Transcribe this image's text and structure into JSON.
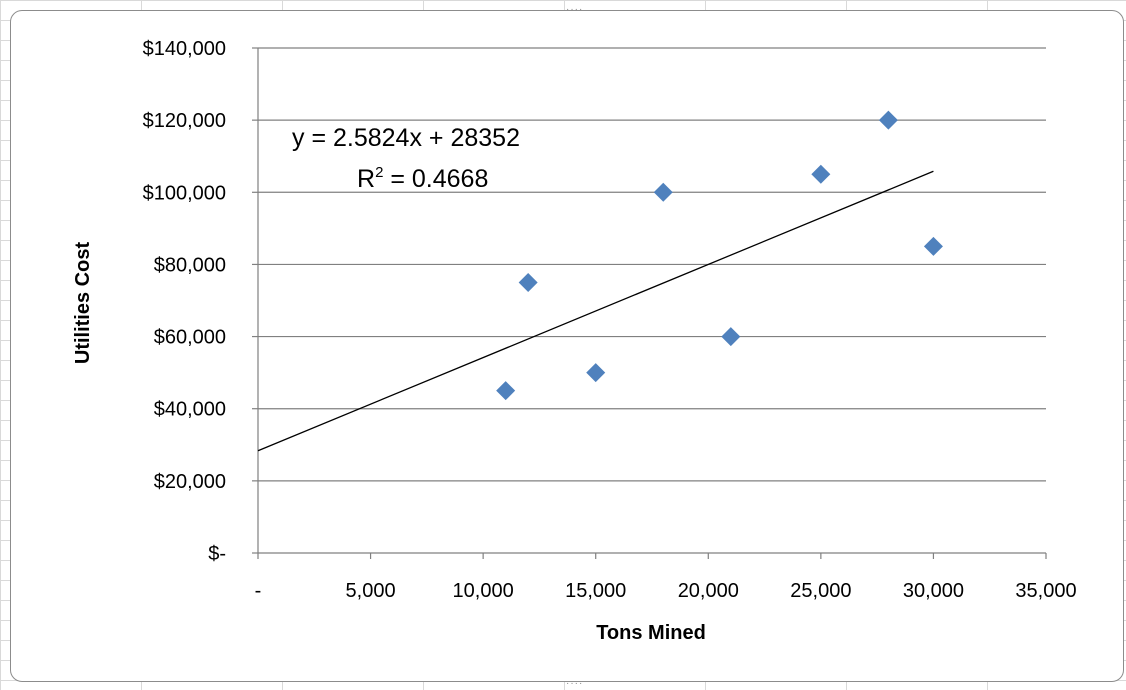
{
  "chart_data": {
    "type": "scatter",
    "title": "",
    "xlabel": "Tons Mined",
    "ylabel": "Utilities Cost",
    "xlim": [
      0,
      35000
    ],
    "ylim": [
      0,
      140000
    ],
    "x_ticks": [
      0,
      5000,
      10000,
      15000,
      20000,
      25000,
      30000,
      35000
    ],
    "x_tick_labels": [
      "-",
      "5,000",
      "10,000",
      "15,000",
      "20,000",
      "25,000",
      "30,000",
      "35,000"
    ],
    "y_ticks": [
      0,
      20000,
      40000,
      60000,
      80000,
      100000,
      120000,
      140000
    ],
    "y_tick_labels": [
      "$-",
      "$20,000",
      "$40,000",
      "$60,000",
      "$80,000",
      "$100,000",
      "$120,000",
      "$140,000"
    ],
    "grid": "horizontal",
    "legend": "none",
    "marker": "diamond",
    "series": [
      {
        "x": [
          11000,
          12000,
          15000,
          18000,
          21000,
          25000,
          28000,
          30000
        ],
        "y": [
          45000,
          75000,
          50000,
          100000,
          60000,
          105000,
          120000,
          85000
        ],
        "color": "#4f81bd"
      }
    ],
    "trendline": {
      "type": "linear",
      "slope": 2.5824,
      "intercept": 28352,
      "x_range": [
        0,
        30000
      ],
      "equation": "y = 2.5824x + 28352",
      "r2_label": "R",
      "r2_exponent": "2",
      "r2_value": " = 0.4668"
    }
  }
}
